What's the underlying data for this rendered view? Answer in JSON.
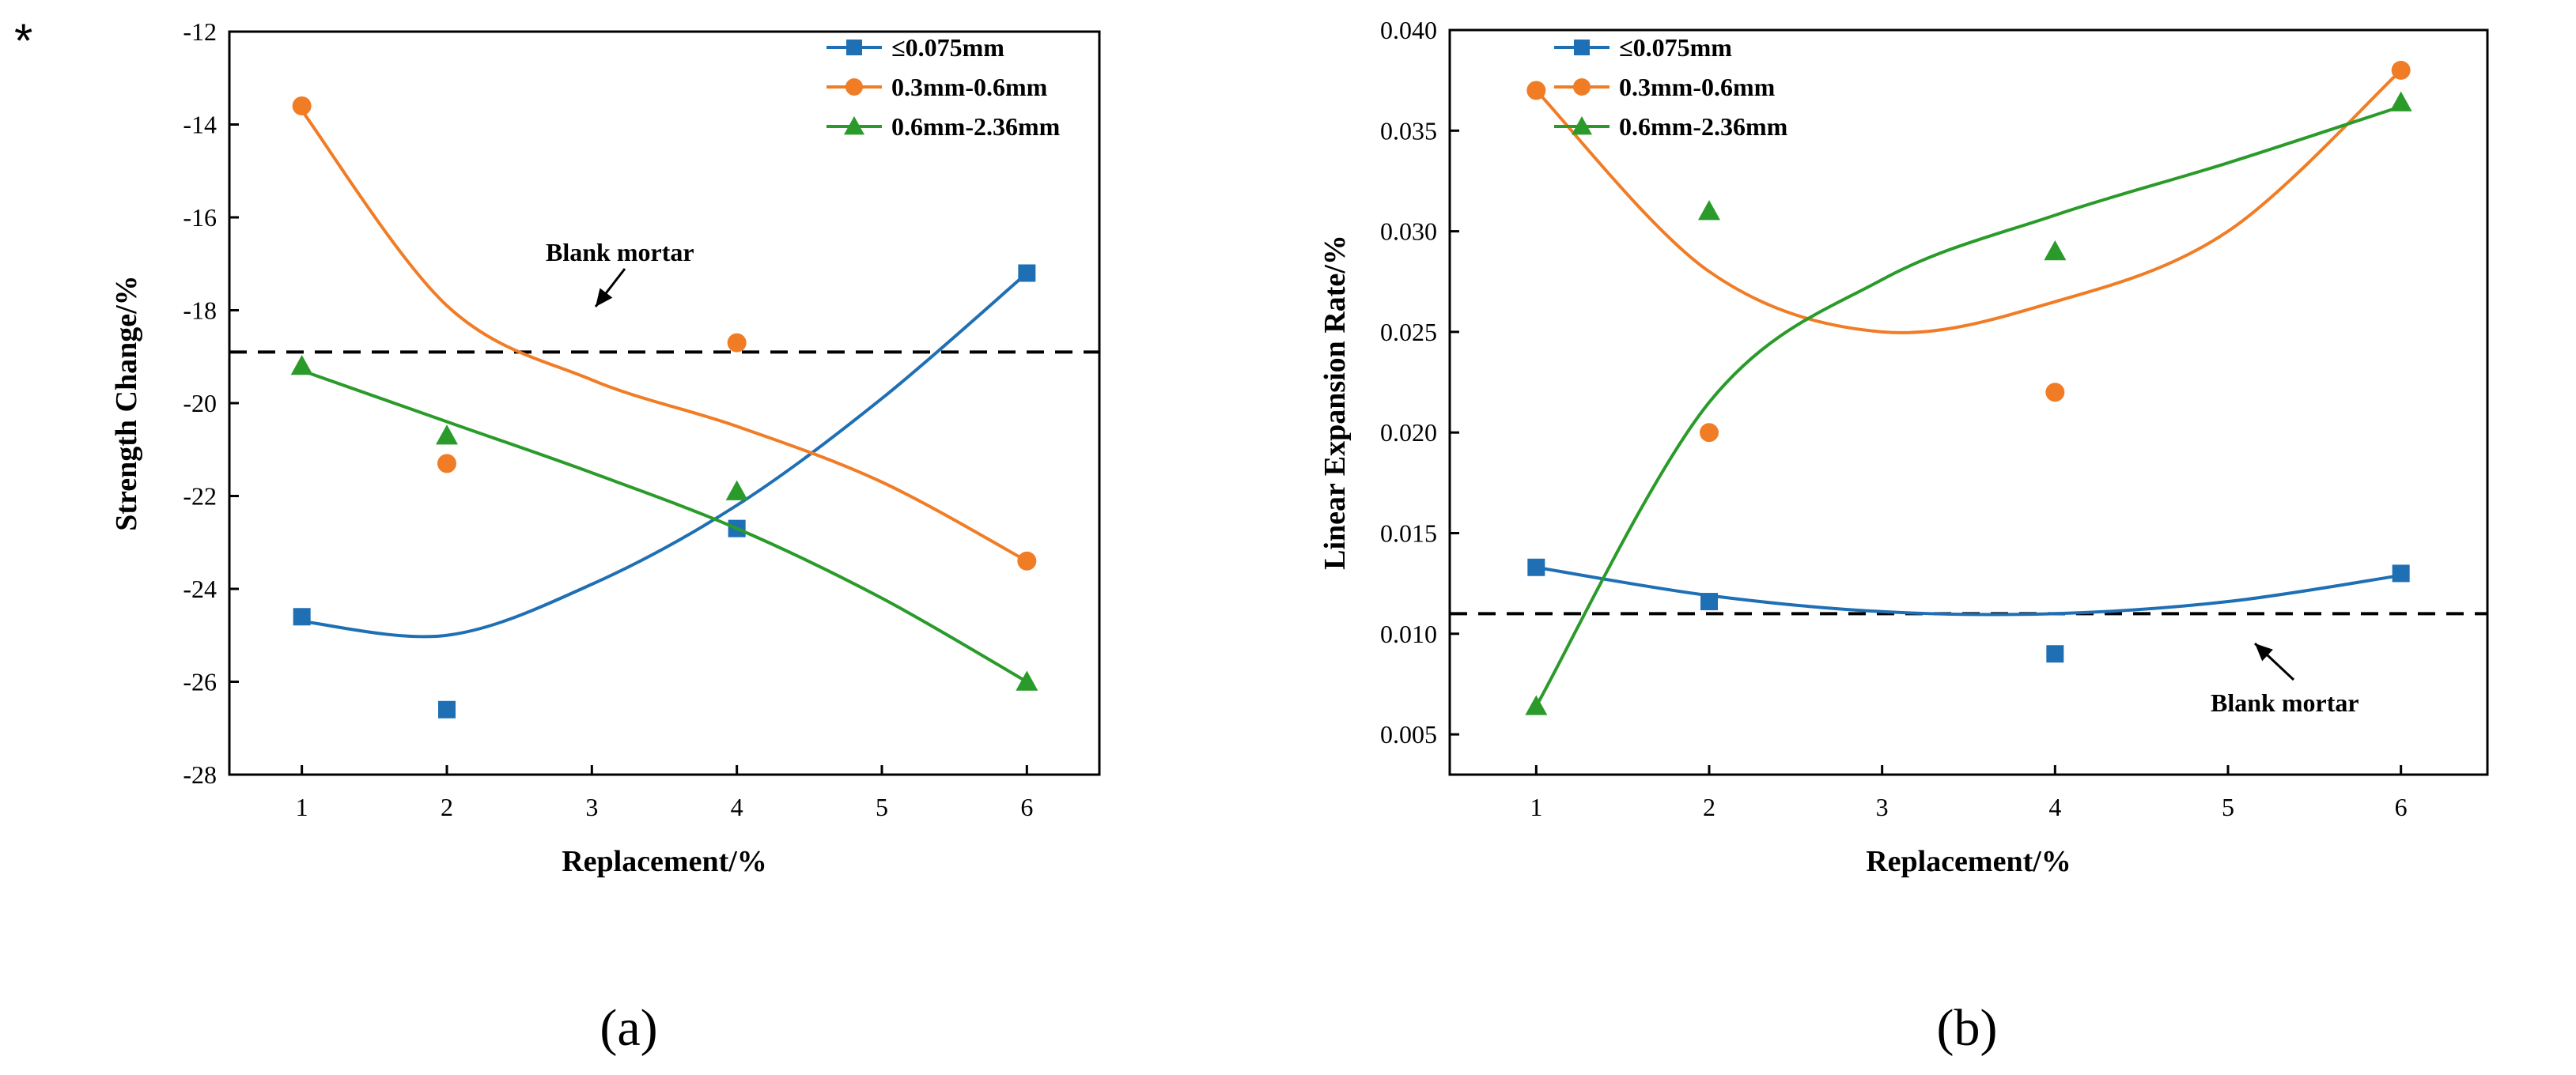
{
  "figure_marker": "*",
  "chart_data": [
    {
      "type": "scatter",
      "caption": "(a)",
      "xlabel": "Replacement/%",
      "ylabel": "Strength Change/%",
      "xlim": [
        0.5,
        6.5
      ],
      "ylim": [
        -28,
        -12
      ],
      "xticks": [
        "1",
        "2",
        "3",
        "4",
        "5",
        "6"
      ],
      "yticks": [
        "-28",
        "-26",
        "-24",
        "-22",
        "-20",
        "-18",
        "-16",
        "-14",
        "-12"
      ],
      "legend_position": "top-right",
      "reference_line": {
        "label": "Blank mortar",
        "value": -18.9
      },
      "series": [
        {
          "name": "≤0.075mm",
          "color": "#1f6fb4",
          "marker": "square",
          "x": [
            1,
            2,
            4,
            6
          ],
          "values": [
            -24.6,
            -26.6,
            -22.7,
            -17.2
          ],
          "fit": [
            -24.7,
            -25.0,
            -23.9,
            -22.2,
            -19.9,
            -17.2
          ]
        },
        {
          "name": "0.3mm-0.6mm",
          "color": "#f07d26",
          "marker": "circle",
          "x": [
            1,
            2,
            4,
            6
          ],
          "values": [
            -13.6,
            -21.3,
            -18.7,
            -23.4
          ],
          "fit": [
            -13.7,
            -17.9,
            -19.5,
            -20.5,
            -21.7,
            -23.4
          ]
        },
        {
          "name": "0.6mm-2.36mm",
          "color": "#2a9b2a",
          "marker": "triangle",
          "x": [
            1,
            2,
            4,
            6
          ],
          "values": [
            -19.2,
            -20.7,
            -21.9,
            -26.0
          ],
          "fit": [
            -19.3,
            -20.4,
            -21.5,
            -22.7,
            -24.2,
            -26.0
          ]
        }
      ]
    },
    {
      "type": "scatter",
      "caption": "(b)",
      "xlabel": "Replacement/%",
      "ylabel": "Linear Expansion Rate/%",
      "xlim": [
        0.5,
        6.5
      ],
      "ylim": [
        0.003,
        0.04
      ],
      "xticks": [
        "1",
        "2",
        "3",
        "4",
        "5",
        "6"
      ],
      "yticks": [
        "0.005",
        "0.010",
        "0.015",
        "0.020",
        "0.025",
        "0.030",
        "0.035",
        "0.040"
      ],
      "legend_position": "top-left",
      "reference_line": {
        "label": "Blank mortar",
        "value": 0.011
      },
      "series": [
        {
          "name": "≤0.075mm",
          "color": "#1f6fb4",
          "marker": "square",
          "x": [
            1,
            2,
            4,
            6
          ],
          "values": [
            0.0133,
            0.0116,
            0.009,
            0.013
          ],
          "fit": [
            0.0133,
            0.0119,
            0.0111,
            0.011,
            0.0116,
            0.0129
          ]
        },
        {
          "name": "0.3mm-0.6mm",
          "color": "#f07d26",
          "marker": "circle",
          "x": [
            1,
            2,
            4,
            6
          ],
          "values": [
            0.037,
            0.02,
            0.022,
            0.038
          ],
          "fit": [
            0.037,
            0.028,
            0.025,
            0.0265,
            0.03,
            0.038
          ]
        },
        {
          "name": "0.6mm-2.36mm",
          "color": "#2a9b2a",
          "marker": "triangle",
          "x": [
            1,
            2,
            4,
            6
          ],
          "values": [
            0.0064,
            0.031,
            0.029,
            0.0364
          ],
          "fit": [
            0.0064,
            0.0215,
            0.0276,
            0.0308,
            0.0334,
            0.0362
          ]
        }
      ]
    }
  ]
}
